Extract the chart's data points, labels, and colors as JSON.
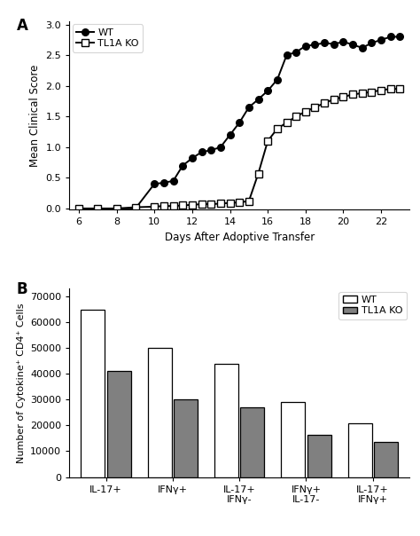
{
  "line_wt_x": [
    6,
    7,
    8,
    9,
    10,
    10.5,
    11,
    11.5,
    12,
    12.5,
    13,
    13.5,
    14,
    14.5,
    15,
    15.5,
    16,
    16.5,
    17,
    17.5,
    18,
    18.5,
    19,
    19.5,
    20,
    20.5,
    21,
    21.5,
    22,
    22.5,
    23
  ],
  "line_wt_y": [
    0.0,
    0.0,
    0.0,
    0.0,
    0.4,
    0.42,
    0.45,
    0.7,
    0.82,
    0.92,
    0.95,
    1.0,
    1.2,
    1.4,
    1.65,
    1.78,
    1.92,
    2.1,
    2.5,
    2.55,
    2.65,
    2.67,
    2.7,
    2.68,
    2.72,
    2.67,
    2.62,
    2.7,
    2.75,
    2.8,
    2.8
  ],
  "line_ko_x": [
    6,
    7,
    8,
    9,
    10,
    10.5,
    11,
    11.5,
    12,
    12.5,
    13,
    13.5,
    14,
    14.5,
    15,
    15.5,
    16,
    16.5,
    17,
    17.5,
    18,
    18.5,
    19,
    19.5,
    20,
    20.5,
    21,
    21.5,
    22,
    22.5,
    23
  ],
  "line_ko_y": [
    0.0,
    0.0,
    0.0,
    0.02,
    0.03,
    0.04,
    0.04,
    0.05,
    0.06,
    0.07,
    0.07,
    0.08,
    0.09,
    0.1,
    0.12,
    0.57,
    1.1,
    1.3,
    1.4,
    1.5,
    1.58,
    1.65,
    1.72,
    1.78,
    1.82,
    1.86,
    1.88,
    1.9,
    1.93,
    1.95,
    1.95
  ],
  "bar_categories": [
    "IL-17+",
    "IFNγ+",
    "IL-17+\nIFNγ-",
    "IFNγ+\nIL-17-",
    "IL-17+\nIFNγ+"
  ],
  "bar_wt": [
    65000,
    50000,
    44000,
    29000,
    21000
  ],
  "bar_ko": [
    41000,
    30000,
    27000,
    16500,
    13500
  ],
  "bar_color_wt": "#ffffff",
  "bar_color_ko": "#808080",
  "bar_edge_color": "#000000",
  "xlabel_line": "Days After Adoptive Transfer",
  "ylabel_line": "Mean Clinical Score",
  "ylabel_bar": "Number of Cytokine⁺ CD4⁺ Cells",
  "yticks_line": [
    0.0,
    0.5,
    1.0,
    1.5,
    2.0,
    2.5,
    3.0
  ],
  "yticks_bar": [
    0,
    10000,
    20000,
    30000,
    40000,
    50000,
    60000,
    70000
  ],
  "xticks_line": [
    6,
    8,
    10,
    12,
    14,
    16,
    18,
    20,
    22
  ],
  "legend_line": [
    "WT",
    "TL1A KO"
  ],
  "legend_bar": [
    "WT",
    "TL1A KO"
  ],
  "label_A": "A",
  "label_B": "B",
  "figsize": [
    4.74,
    6.04
  ],
  "dpi": 100
}
